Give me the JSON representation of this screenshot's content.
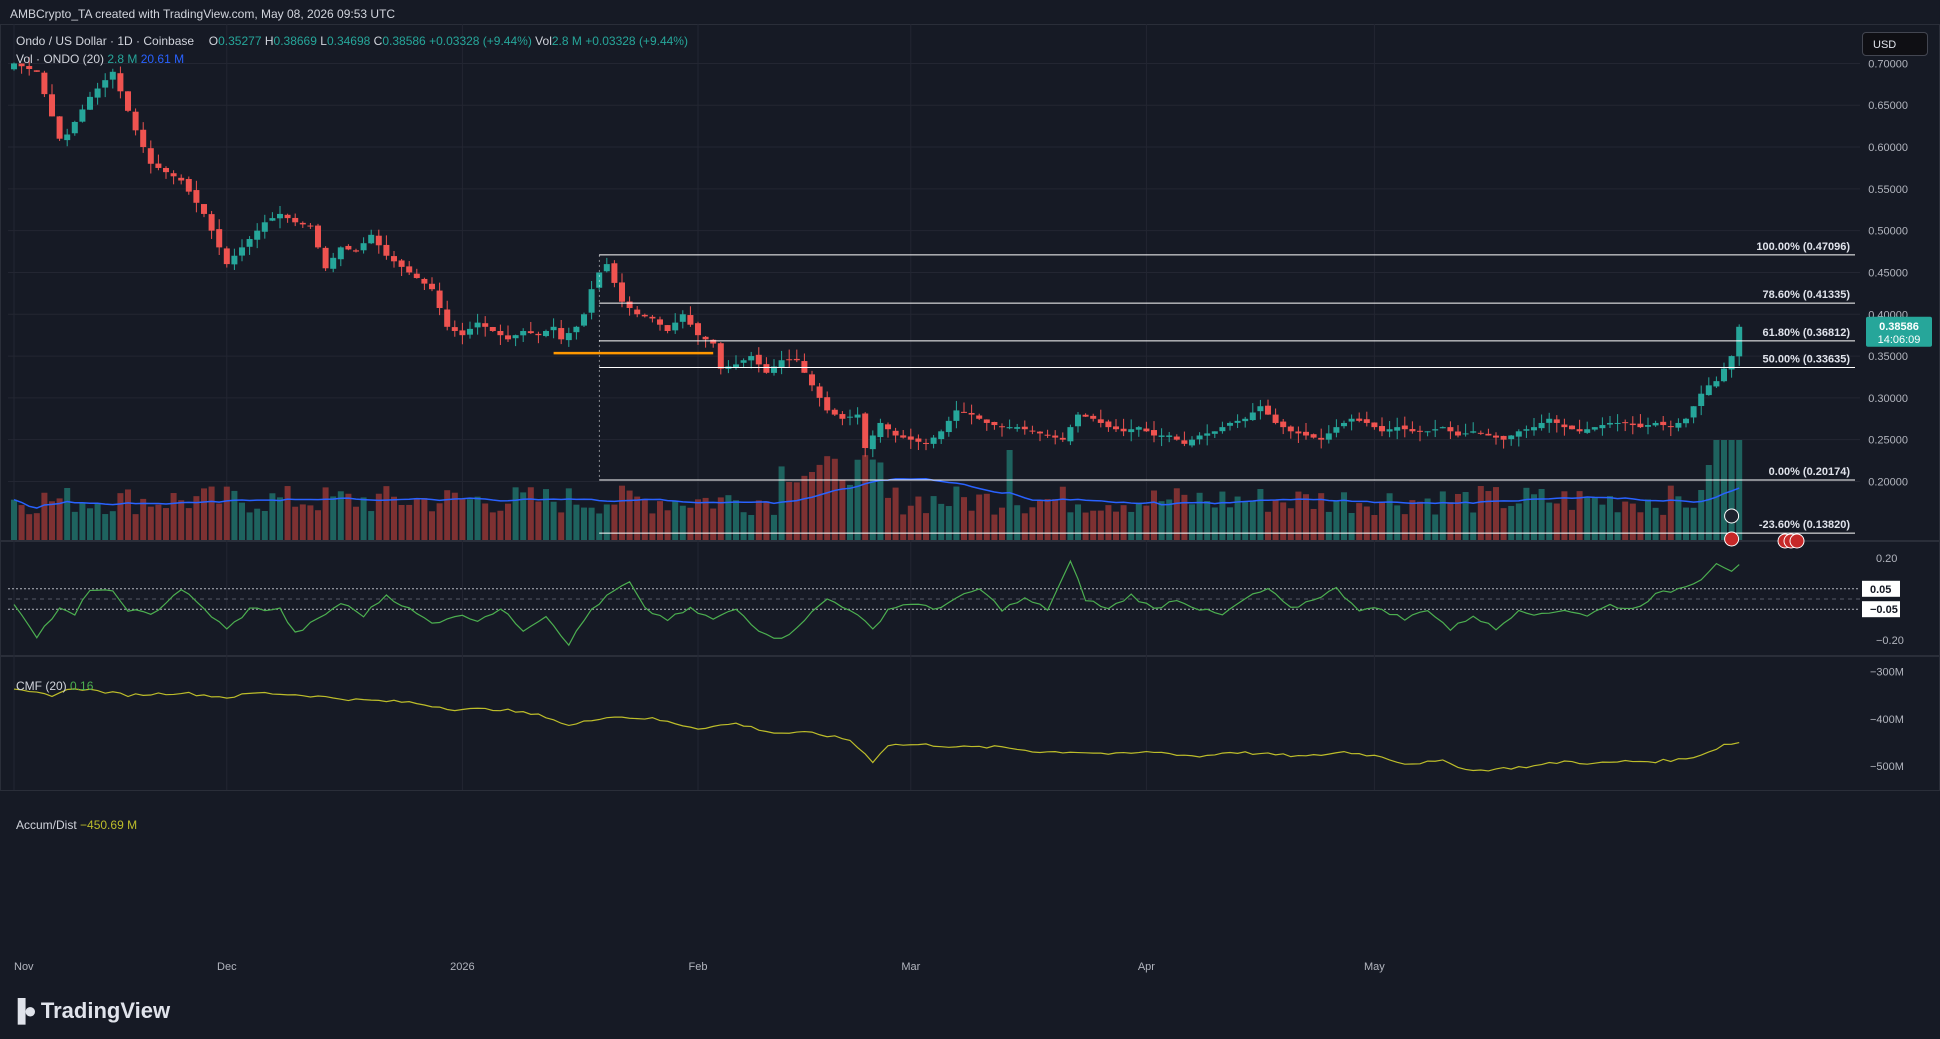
{
  "header": {
    "attribution": "AMBCrypto_TA created with TradingView.com, May 08, 2026 09:53 UTC",
    "currency_button": "USD",
    "brand": "TradingView"
  },
  "legend": {
    "symbol": "Ondo / US Dollar · 1D · Coinbase",
    "open_label": "O",
    "open": "0.35277",
    "high_label": "H",
    "high": "0.38669",
    "low_label": "L",
    "low": "0.34698",
    "close_label": "C",
    "close": "0.38586",
    "change": "+0.03328 (+9.44%)",
    "vol_label": "Vol",
    "vol_value": "2.8 M",
    "vol_change": "+0.03328 (+9.44%)",
    "vol_indicator": "Vol · ONDO (20)",
    "vol_current": "2.8 M",
    "vol_ma": "20.61 M",
    "cmf_label": "CMF (20)",
    "cmf_value": "0.16",
    "ad_label": "Accum/Dist",
    "ad_value": "−450.69 M"
  },
  "price_tag": {
    "value": "0.38586",
    "countdown": "14:06:09"
  },
  "colors": {
    "up": "#26a69a",
    "down": "#ef5350",
    "fib": "#ffffff",
    "orange": "#ff9800",
    "vol_ma": "#2962ff",
    "cmf": "#4caf50",
    "ad": "#bdbd2a",
    "background": "#161a25"
  },
  "chart_data": {
    "type": "candlestick",
    "symbol": "ONDO/USD",
    "timeframe": "1D",
    "x_ticks": [
      "Nov",
      "Dec",
      "2026",
      "Feb",
      "Mar",
      "Apr",
      "May"
    ],
    "y_ticks": [
      "0.70000",
      "0.65000",
      "0.60000",
      "0.55000",
      "0.50000",
      "0.45000",
      "0.40000",
      "0.35000",
      "0.30000",
      "0.25000",
      "0.20000"
    ],
    "ylim": [
      0.13,
      0.74
    ],
    "fib_levels": [
      {
        "label": "100.00% (0.47096)",
        "value": 0.47096
      },
      {
        "label": "78.60% (0.41335)",
        "value": 0.41335
      },
      {
        "label": "61.80% (0.36812)",
        "value": 0.36812
      },
      {
        "label": "50.00% (0.33635)",
        "value": 0.33635
      },
      {
        "label": "0.00% (0.20174)",
        "value": 0.20174
      },
      {
        "label": "-23.60% (0.13820)",
        "value": 0.1382
      }
    ],
    "support_line_value": 0.3535,
    "close_anchors": [
      [
        0,
        0.7
      ],
      [
        3,
        0.69
      ],
      [
        6,
        0.61
      ],
      [
        7,
        0.615
      ],
      [
        10,
        0.66
      ],
      [
        12,
        0.68
      ],
      [
        13,
        0.69
      ],
      [
        16,
        0.62
      ],
      [
        18,
        0.58
      ],
      [
        22,
        0.56
      ],
      [
        25,
        0.52
      ],
      [
        28,
        0.46
      ],
      [
        31,
        0.49
      ],
      [
        33,
        0.51
      ],
      [
        35,
        0.52
      ],
      [
        37,
        0.51
      ],
      [
        39,
        0.505
      ],
      [
        41,
        0.455
      ],
      [
        43,
        0.48
      ],
      [
        45,
        0.475
      ],
      [
        47,
        0.495
      ],
      [
        49,
        0.47
      ],
      [
        52,
        0.45
      ],
      [
        55,
        0.43
      ],
      [
        57,
        0.385
      ],
      [
        59,
        0.375
      ],
      [
        61,
        0.39
      ],
      [
        63,
        0.38
      ],
      [
        65,
        0.37
      ],
      [
        67,
        0.38
      ],
      [
        69,
        0.375
      ],
      [
        71,
        0.385
      ],
      [
        72,
        0.37
      ],
      [
        74,
        0.385
      ],
      [
        75,
        0.4
      ],
      [
        76,
        0.43
      ],
      [
        77,
        0.45
      ],
      [
        78,
        0.46
      ],
      [
        80,
        0.415
      ],
      [
        82,
        0.4
      ],
      [
        84,
        0.395
      ],
      [
        86,
        0.38
      ],
      [
        88,
        0.4
      ],
      [
        90,
        0.375
      ],
      [
        92,
        0.365
      ],
      [
        93,
        0.335
      ],
      [
        95,
        0.34
      ],
      [
        97,
        0.35
      ],
      [
        99,
        0.33
      ],
      [
        101,
        0.345
      ],
      [
        103,
        0.345
      ],
      [
        105,
        0.315
      ],
      [
        107,
        0.285
      ],
      [
        109,
        0.275
      ],
      [
        111,
        0.28
      ],
      [
        112,
        0.24
      ],
      [
        114,
        0.27
      ],
      [
        116,
        0.255
      ],
      [
        118,
        0.25
      ],
      [
        120,
        0.245
      ],
      [
        122,
        0.26
      ],
      [
        124,
        0.285
      ],
      [
        126,
        0.28
      ],
      [
        128,
        0.27
      ],
      [
        130,
        0.265
      ],
      [
        132,
        0.265
      ],
      [
        134,
        0.26
      ],
      [
        136,
        0.255
      ],
      [
        138,
        0.25
      ],
      [
        140,
        0.28
      ],
      [
        142,
        0.275
      ],
      [
        144,
        0.265
      ],
      [
        146,
        0.26
      ],
      [
        148,
        0.265
      ],
      [
        150,
        0.255
      ],
      [
        152,
        0.255
      ],
      [
        154,
        0.245
      ],
      [
        156,
        0.255
      ],
      [
        158,
        0.26
      ],
      [
        160,
        0.27
      ],
      [
        162,
        0.275
      ],
      [
        164,
        0.29
      ],
      [
        166,
        0.27
      ],
      [
        168,
        0.26
      ],
      [
        170,
        0.255
      ],
      [
        172,
        0.25
      ],
      [
        174,
        0.265
      ],
      [
        176,
        0.275
      ],
      [
        178,
        0.27
      ],
      [
        180,
        0.26
      ],
      [
        182,
        0.265
      ],
      [
        184,
        0.26
      ],
      [
        186,
        0.26
      ],
      [
        188,
        0.265
      ],
      [
        190,
        0.255
      ],
      [
        192,
        0.26
      ],
      [
        194,
        0.255
      ],
      [
        196,
        0.25
      ],
      [
        198,
        0.26
      ],
      [
        200,
        0.265
      ],
      [
        202,
        0.275
      ],
      [
        204,
        0.265
      ],
      [
        206,
        0.26
      ],
      [
        208,
        0.265
      ],
      [
        210,
        0.27
      ],
      [
        212,
        0.27
      ],
      [
        214,
        0.265
      ],
      [
        216,
        0.27
      ],
      [
        218,
        0.265
      ],
      [
        220,
        0.275
      ],
      [
        221,
        0.29
      ],
      [
        222,
        0.305
      ],
      [
        223,
        0.315
      ],
      [
        224,
        0.32
      ],
      [
        225,
        0.335
      ],
      [
        226,
        0.35
      ],
      [
        227,
        0.385
      ]
    ],
    "volume_ma_label": "Vol · ONDO (20)",
    "volume_ma_value": 20.61
  },
  "cmf_panel": {
    "y_ticks": [
      "0.20",
      "−0.20"
    ],
    "levels": [
      {
        "label": "0.05",
        "value": 0.05
      },
      {
        "label": "−0.05",
        "value": -0.05
      }
    ],
    "current": 0.16,
    "anchors": [
      [
        0,
        -0.02
      ],
      [
        3,
        -0.18
      ],
      [
        6,
        -0.05
      ],
      [
        8,
        -0.08
      ],
      [
        10,
        0.05
      ],
      [
        13,
        0.03
      ],
      [
        15,
        -0.05
      ],
      [
        18,
        -0.08
      ],
      [
        22,
        0.05
      ],
      [
        25,
        -0.05
      ],
      [
        28,
        -0.15
      ],
      [
        31,
        -0.05
      ],
      [
        35,
        -0.05
      ],
      [
        37,
        -0.17
      ],
      [
        40,
        -0.1
      ],
      [
        43,
        -0.02
      ],
      [
        46,
        -0.08
      ],
      [
        49,
        0.02
      ],
      [
        52,
        -0.05
      ],
      [
        55,
        -0.12
      ],
      [
        58,
        -0.08
      ],
      [
        61,
        -0.1
      ],
      [
        64,
        -0.05
      ],
      [
        67,
        -0.15
      ],
      [
        70,
        -0.08
      ],
      [
        73,
        -0.22
      ],
      [
        76,
        -0.05
      ],
      [
        79,
        0.04
      ],
      [
        81,
        0.08
      ],
      [
        83,
        -0.05
      ],
      [
        86,
        -0.1
      ],
      [
        89,
        -0.05
      ],
      [
        92,
        -0.1
      ],
      [
        95,
        -0.05
      ],
      [
        98,
        -0.15
      ],
      [
        101,
        -0.2
      ],
      [
        104,
        -0.1
      ],
      [
        107,
        0.0
      ],
      [
        110,
        -0.05
      ],
      [
        113,
        -0.15
      ],
      [
        115,
        -0.05
      ],
      [
        118,
        -0.02
      ],
      [
        121,
        -0.05
      ],
      [
        124,
        0.0
      ],
      [
        127,
        0.05
      ],
      [
        130,
        -0.05
      ],
      [
        133,
        0.0
      ],
      [
        136,
        -0.05
      ],
      [
        139,
        0.18
      ],
      [
        141,
        0.0
      ],
      [
        144,
        -0.05
      ],
      [
        147,
        0.02
      ],
      [
        150,
        -0.05
      ],
      [
        153,
        0.0
      ],
      [
        156,
        -0.05
      ],
      [
        159,
        -0.08
      ],
      [
        162,
        0.0
      ],
      [
        165,
        0.05
      ],
      [
        168,
        -0.05
      ],
      [
        171,
        0.0
      ],
      [
        174,
        0.05
      ],
      [
        177,
        -0.05
      ],
      [
        180,
        -0.05
      ],
      [
        183,
        -0.1
      ],
      [
        186,
        -0.05
      ],
      [
        189,
        -0.15
      ],
      [
        192,
        -0.08
      ],
      [
        195,
        -0.15
      ],
      [
        198,
        -0.05
      ],
      [
        201,
        -0.08
      ],
      [
        204,
        -0.05
      ],
      [
        207,
        -0.08
      ],
      [
        210,
        -0.03
      ],
      [
        213,
        -0.05
      ],
      [
        216,
        0.02
      ],
      [
        219,
        0.05
      ],
      [
        222,
        0.1
      ],
      [
        224,
        0.18
      ],
      [
        226,
        0.14
      ],
      [
        227,
        0.16
      ]
    ]
  },
  "ad_panel": {
    "y_ticks": [
      "−300M",
      "−400M",
      "−500M"
    ],
    "current": -450.69,
    "anchors": [
      [
        0,
        -340
      ],
      [
        5,
        -350
      ],
      [
        8,
        -335
      ],
      [
        15,
        -350
      ],
      [
        22,
        -345
      ],
      [
        28,
        -355
      ],
      [
        32,
        -345
      ],
      [
        38,
        -350
      ],
      [
        45,
        -360
      ],
      [
        52,
        -365
      ],
      [
        58,
        -380
      ],
      [
        64,
        -380
      ],
      [
        70,
        -395
      ],
      [
        73,
        -415
      ],
      [
        78,
        -395
      ],
      [
        84,
        -400
      ],
      [
        90,
        -420
      ],
      [
        95,
        -410
      ],
      [
        100,
        -430
      ],
      [
        105,
        -430
      ],
      [
        110,
        -445
      ],
      [
        113,
        -490
      ],
      [
        115,
        -455
      ],
      [
        120,
        -455
      ],
      [
        125,
        -460
      ],
      [
        130,
        -460
      ],
      [
        135,
        -470
      ],
      [
        140,
        -470
      ],
      [
        145,
        -475
      ],
      [
        150,
        -470
      ],
      [
        156,
        -480
      ],
      [
        160,
        -470
      ],
      [
        165,
        -475
      ],
      [
        170,
        -480
      ],
      [
        175,
        -470
      ],
      [
        180,
        -480
      ],
      [
        183,
        -495
      ],
      [
        188,
        -490
      ],
      [
        192,
        -510
      ],
      [
        196,
        -505
      ],
      [
        200,
        -500
      ],
      [
        204,
        -490
      ],
      [
        208,
        -495
      ],
      [
        212,
        -490
      ],
      [
        216,
        -490
      ],
      [
        220,
        -485
      ],
      [
        223,
        -470
      ],
      [
        225,
        -455
      ],
      [
        227,
        -450
      ]
    ]
  }
}
